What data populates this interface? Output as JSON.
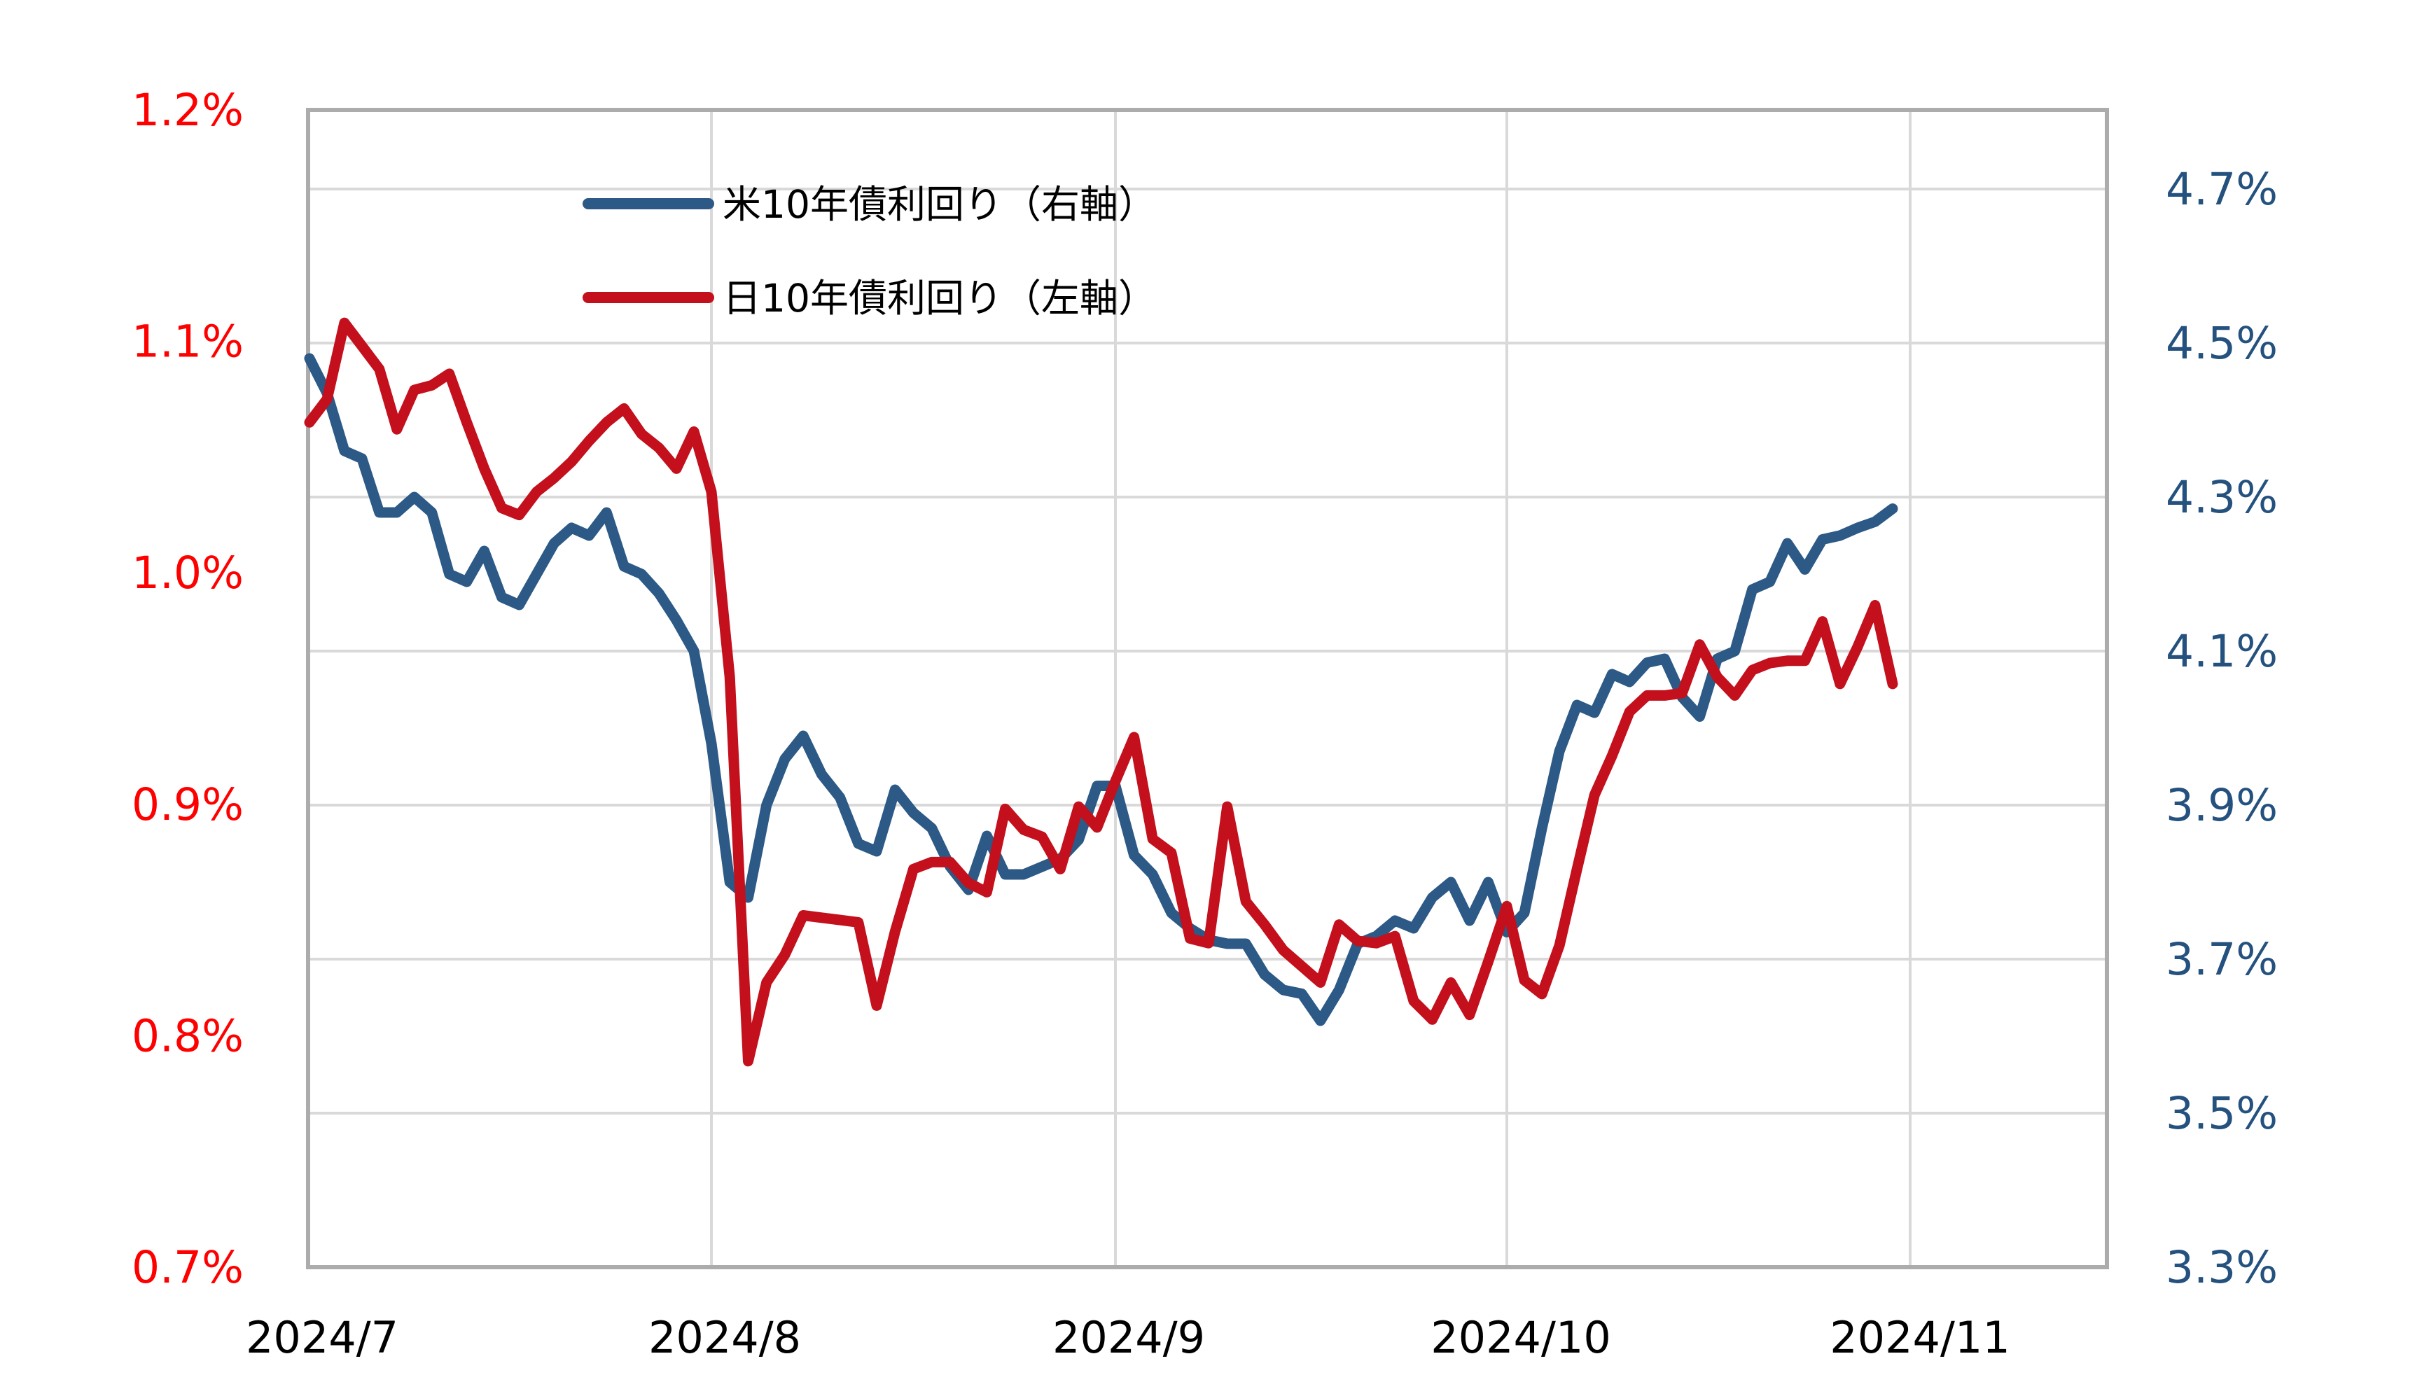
{
  "chart_data": {
    "type": "line",
    "title": "",
    "grid": true,
    "legend_position": "top-center-inside",
    "x_axis": {
      "tick_labels": [
        "2024/7",
        "2024/8",
        "2024/9",
        "2024/10",
        "2024/11"
      ]
    },
    "left_axis": {
      "tick_labels": [
        "1.2%",
        "1.1%",
        "1.0%",
        "0.9%",
        "0.8%",
        "0.7%"
      ],
      "min": 0.7,
      "max": 1.2,
      "color": "#FF0000"
    },
    "right_axis": {
      "tick_labels": [
        "4.7%",
        "4.5%",
        "4.3%",
        "4.1%",
        "3.9%",
        "3.7%",
        "3.5%",
        "3.3%"
      ],
      "min": 3.3,
      "max": 4.7,
      "color": "#24517E"
    },
    "dates": [
      "7/1",
      "7/2",
      "7/3",
      "7/4",
      "7/5",
      "7/8",
      "7/9",
      "7/10",
      "7/11",
      "7/12",
      "7/15",
      "7/16",
      "7/17",
      "7/18",
      "7/19",
      "7/22",
      "7/23",
      "7/24",
      "7/25",
      "7/26",
      "7/29",
      "7/30",
      "7/31",
      "8/1",
      "8/2",
      "8/5",
      "8/6",
      "8/7",
      "8/8",
      "8/9",
      "8/12",
      "8/13",
      "8/14",
      "8/15",
      "8/16",
      "8/19",
      "8/20",
      "8/21",
      "8/22",
      "8/23",
      "8/26",
      "8/27",
      "8/28",
      "8/29",
      "8/30",
      "9/2",
      "9/3",
      "9/4",
      "9/5",
      "9/6",
      "9/9",
      "9/10",
      "9/11",
      "9/12",
      "9/13",
      "9/16",
      "9/17",
      "9/18",
      "9/19",
      "9/20",
      "9/23",
      "9/24",
      "9/25",
      "9/26",
      "9/27",
      "9/30",
      "10/1",
      "10/2",
      "10/3",
      "10/4",
      "10/7",
      "10/8",
      "10/9",
      "10/10",
      "10/11",
      "10/14",
      "10/15",
      "10/16",
      "10/17",
      "10/18",
      "10/21",
      "10/22",
      "10/23",
      "10/24",
      "10/25",
      "10/28",
      "10/29",
      "10/30",
      "10/31"
    ],
    "series": [
      {
        "name": "米10年債利回り（右軸）",
        "axis": "right",
        "color": "#2C5985",
        "values": [
          4.48,
          4.435,
          4.36,
          4.35,
          4.28,
          4.28,
          4.3,
          4.28,
          4.2,
          4.19,
          4.23,
          4.17,
          4.16,
          4.2,
          4.24,
          4.26,
          4.25,
          4.28,
          4.21,
          4.2,
          4.175,
          4.14,
          4.1,
          3.98,
          3.8,
          3.78,
          3.9,
          3.96,
          3.99,
          3.94,
          3.91,
          3.85,
          3.84,
          3.92,
          3.89,
          3.87,
          3.82,
          3.79,
          3.86,
          3.81,
          3.81,
          3.82,
          3.83,
          3.855,
          3.925,
          3.925,
          3.835,
          3.81,
          3.76,
          3.74,
          3.725,
          3.72,
          3.72,
          3.68,
          3.66,
          3.655,
          3.62,
          3.66,
          3.72,
          3.73,
          3.75,
          3.74,
          3.78,
          3.8,
          3.75,
          3.8,
          3.735,
          3.76,
          3.87,
          3.97,
          4.03,
          4.02,
          4.07,
          4.06,
          4.085,
          4.09,
          4.04,
          4.015,
          4.09,
          4.1,
          4.18,
          4.19,
          4.24,
          4.206,
          4.245,
          4.25,
          4.26,
          4.268,
          4.285
        ]
      },
      {
        "name": "日10年債利回り（左軸）",
        "axis": "left",
        "color": "#C3101C",
        "values": [
          1.065,
          1.075,
          1.108,
          1.098,
          1.088,
          1.062,
          1.079,
          1.081,
          1.086,
          1.065,
          1.045,
          1.028,
          1.025,
          1.035,
          1.041,
          1.048,
          1.057,
          1.065,
          1.071,
          1.06,
          1.054,
          1.045,
          1.061,
          1.035,
          0.955,
          0.789,
          0.823,
          0.835,
          0.852,
          0.851,
          0.85,
          0.849,
          0.813,
          0.845,
          0.872,
          0.875,
          0.875,
          0.866,
          0.862,
          0.898,
          0.889,
          0.886,
          0.872,
          0.899,
          0.89,
          0.91,
          0.929,
          0.885,
          0.879,
          0.842,
          0.84,
          0.899,
          0.858,
          0.848,
          0.837,
          0.83,
          0.823,
          0.848,
          0.841,
          0.84,
          0.843,
          0.815,
          0.807,
          0.823,
          0.809,
          0.832,
          0.856,
          0.824,
          0.818,
          0.839,
          0.872,
          0.904,
          0.921,
          0.94,
          0.947,
          0.947,
          0.948,
          0.969,
          0.955,
          0.947,
          0.958,
          0.961,
          0.962,
          0.962,
          0.979,
          0.952,
          0.968,
          0.986,
          0.952
        ]
      }
    ]
  }
}
